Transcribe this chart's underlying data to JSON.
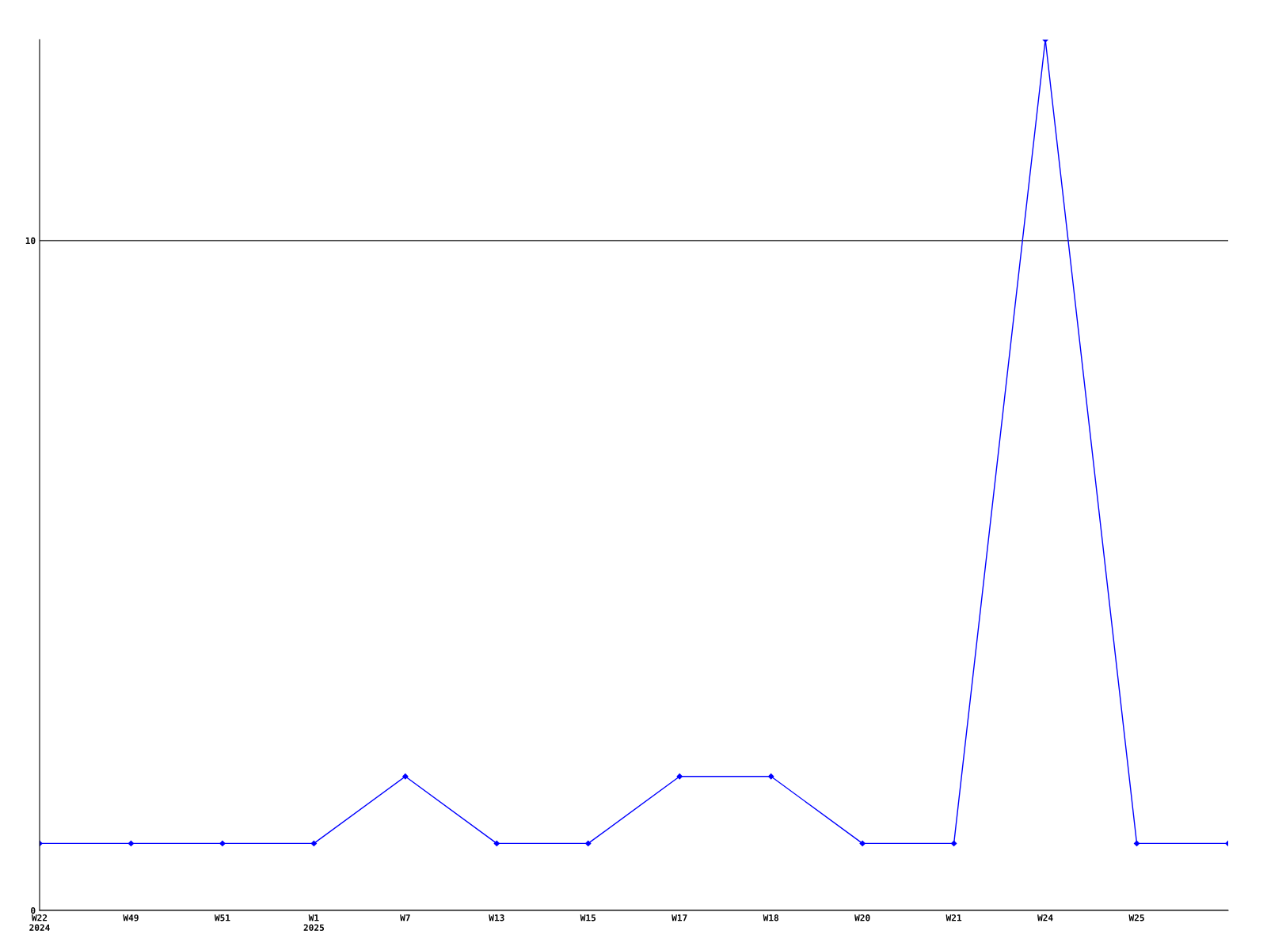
{
  "chart_data": {
    "type": "line",
    "categories": [
      "W22\n2024",
      "W49",
      "W51",
      "W1\n2025",
      "W7",
      "W13",
      "W15",
      "W17",
      "W18",
      "W20",
      "W21",
      "W24",
      "W25",
      null
    ],
    "series": [
      {
        "color": "#0000ff",
        "values": [
          1,
          1,
          1,
          1,
          2,
          1,
          1,
          2,
          2,
          1,
          1,
          13,
          1,
          1
        ]
      }
    ],
    "ylim": [
      0,
      13
    ],
    "yticks": [
      0,
      10
    ],
    "grid": "y",
    "marker": "diamond",
    "line_style": "solid",
    "legend": false
  }
}
